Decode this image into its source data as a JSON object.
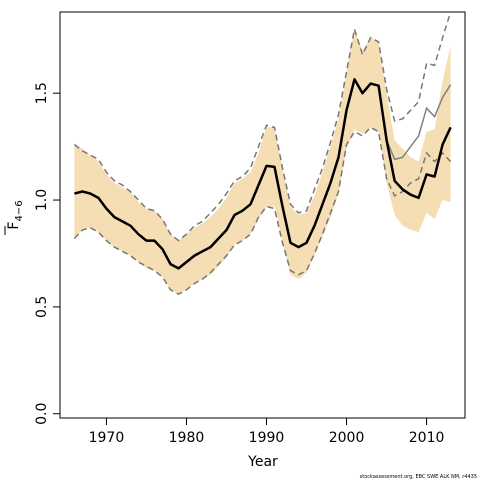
{
  "chart_data": {
    "type": "line",
    "xlabel": "Year",
    "ylabel_main": "F",
    "ylabel_sub": "4−6",
    "xlim": [
      1964.2,
      2014.8
    ],
    "ylim": [
      -0.02,
      1.88
    ],
    "x_ticks": [
      1970,
      1980,
      1990,
      2000,
      2010
    ],
    "x_tick_labels": [
      "1970",
      "1980",
      "1990",
      "2000",
      "2010"
    ],
    "y_ticks": [
      0.0,
      0.5,
      1.0,
      1.5
    ],
    "y_tick_labels": [
      "0.0",
      "0.5",
      "1.0",
      "1.5"
    ],
    "credit": "stockassessment.org, EBC SWE ALK NM, r4435",
    "band_color": "#f5deb3",
    "years": [
      1966,
      1967,
      1968,
      1969,
      1970,
      1971,
      1972,
      1973,
      1974,
      1975,
      1976,
      1977,
      1978,
      1979,
      1980,
      1981,
      1982,
      1983,
      1984,
      1985,
      1986,
      1987,
      1988,
      1989,
      1990,
      1991,
      1992,
      1993,
      1994,
      1995,
      1996,
      1997,
      1998,
      1999,
      2000,
      2001,
      2002,
      2003,
      2004,
      2005,
      2006,
      2007,
      2008,
      2009,
      2010,
      2011,
      2012,
      2013
    ],
    "estimate": [
      1.03,
      1.04,
      1.03,
      1.01,
      0.96,
      0.92,
      0.9,
      0.88,
      0.84,
      0.81,
      0.81,
      0.77,
      0.7,
      0.68,
      0.71,
      0.74,
      0.76,
      0.78,
      0.82,
      0.86,
      0.93,
      0.95,
      0.98,
      1.07,
      1.16,
      1.155,
      0.97,
      0.8,
      0.78,
      0.8,
      0.88,
      0.98,
      1.08,
      1.2,
      1.42,
      1.565,
      1.5,
      1.545,
      1.535,
      1.28,
      1.09,
      1.05,
      1.025,
      1.01,
      1.12,
      1.11,
      1.26,
      1.34
    ],
    "upper_ci": [
      1.26,
      1.24,
      1.21,
      1.18,
      1.12,
      1.08,
      1.06,
      1.04,
      0.99,
      0.96,
      0.95,
      0.91,
      0.84,
      0.81,
      0.84,
      0.87,
      0.89,
      0.92,
      0.96,
      1.01,
      1.08,
      1.1,
      1.13,
      1.22,
      1.34,
      1.34,
      1.15,
      0.97,
      0.93,
      0.94,
      1.02,
      1.13,
      1.25,
      1.38,
      1.6,
      1.8,
      1.7,
      1.76,
      1.74,
      1.5,
      1.28,
      1.24,
      1.2,
      1.18,
      1.32,
      1.33,
      1.56,
      1.72
    ],
    "lower_ci": [
      0.82,
      0.86,
      0.87,
      0.85,
      0.81,
      0.78,
      0.76,
      0.74,
      0.71,
      0.68,
      0.67,
      0.64,
      0.58,
      0.56,
      0.58,
      0.61,
      0.63,
      0.65,
      0.69,
      0.73,
      0.79,
      0.81,
      0.84,
      0.91,
      0.97,
      0.97,
      0.8,
      0.65,
      0.63,
      0.66,
      0.74,
      0.83,
      0.92,
      1.03,
      1.24,
      1.33,
      1.31,
      1.34,
      1.32,
      1.08,
      0.93,
      0.88,
      0.86,
      0.85,
      0.94,
      0.91,
      1.0,
      0.99
    ],
    "series": [
      {
        "style": "dashed",
        "color": "#777777",
        "years": [
          1966,
          1967,
          1968,
          1969,
          1970,
          1971,
          1972,
          1973,
          1974,
          1975,
          1976,
          1977,
          1978,
          1979,
          1980,
          1981,
          1982,
          1983,
          1984,
          1985,
          1986,
          1987,
          1988,
          1989,
          1990,
          1991,
          1992,
          1993,
          1994,
          1995,
          1996,
          1997,
          1998,
          1999,
          2000,
          2001,
          2002,
          2003,
          2004,
          2005,
          2006,
          2007,
          2008,
          2009,
          2010,
          2011,
          2012,
          2013
        ],
        "upper": [
          1.26,
          1.23,
          1.21,
          1.19,
          1.13,
          1.09,
          1.07,
          1.04,
          1.0,
          0.96,
          0.95,
          0.91,
          0.84,
          0.81,
          0.84,
          0.88,
          0.9,
          0.94,
          0.98,
          1.03,
          1.09,
          1.11,
          1.15,
          1.25,
          1.35,
          1.34,
          1.15,
          0.98,
          0.94,
          0.95,
          1.05,
          1.15,
          1.27,
          1.4,
          1.6,
          1.8,
          1.68,
          1.76,
          1.74,
          1.52,
          1.37,
          1.38,
          1.42,
          1.46,
          1.64,
          1.63,
          1.76,
          1.9
        ],
        "lower": [
          0.82,
          0.86,
          0.87,
          0.85,
          0.81,
          0.78,
          0.76,
          0.74,
          0.71,
          0.69,
          0.67,
          0.64,
          0.58,
          0.56,
          0.58,
          0.61,
          0.63,
          0.66,
          0.7,
          0.74,
          0.79,
          0.81,
          0.84,
          0.92,
          0.97,
          0.96,
          0.8,
          0.67,
          0.65,
          0.67,
          0.75,
          0.84,
          0.94,
          1.04,
          1.26,
          1.32,
          1.3,
          1.34,
          1.32,
          1.1,
          1.02,
          1.04,
          1.08,
          1.1,
          1.22,
          1.18,
          1.22,
          1.18
        ]
      },
      {
        "style": "solid",
        "color": "#808080",
        "years": [
          2005,
          2006,
          2007,
          2008,
          2009,
          2010,
          2011,
          2012,
          2013
        ],
        "values": [
          1.28,
          1.19,
          1.2,
          1.25,
          1.3,
          1.43,
          1.39,
          1.48,
          1.54
        ]
      }
    ]
  }
}
